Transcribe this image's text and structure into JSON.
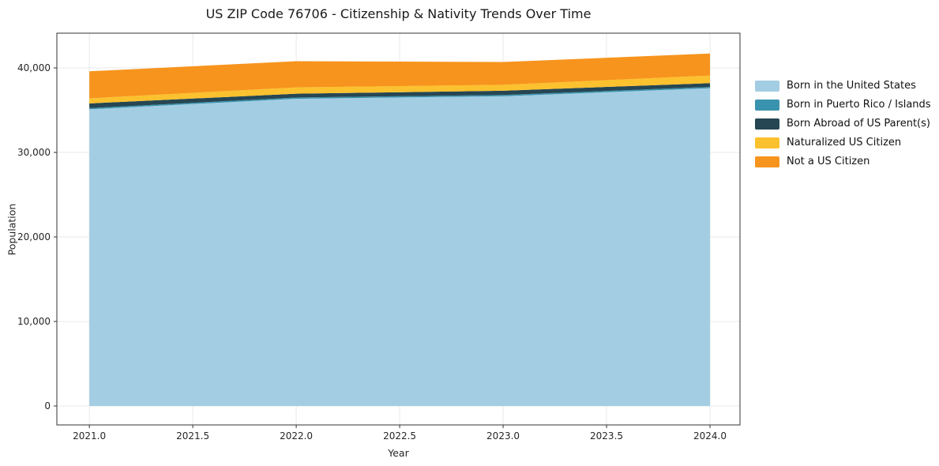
{
  "chart_data": {
    "type": "area",
    "title": "US ZIP Code 76706 - Citizenship & Nativity Trends Over Time",
    "xlabel": "Year",
    "ylabel": "Population",
    "x": [
      2021,
      2022,
      2023,
      2024
    ],
    "series": [
      {
        "name": "Born in the United States",
        "color": "#a3cde3",
        "values": [
          35100,
          36350,
          36650,
          37600
        ]
      },
      {
        "name": "Born in Puerto Rico / Islands",
        "color": "#3a93ae",
        "values": [
          150,
          150,
          150,
          150
        ]
      },
      {
        "name": "Born Abroad of US Parent(s)",
        "color": "#264653",
        "values": [
          550,
          450,
          500,
          450
        ]
      },
      {
        "name": "Naturalized US Citizen",
        "color": "#fcc12e",
        "values": [
          600,
          750,
          700,
          900
        ]
      },
      {
        "name": "Not a US Citizen",
        "color": "#f7941d",
        "values": [
          3200,
          3100,
          2700,
          2600
        ]
      }
    ],
    "x_ticks": [
      {
        "v": 2021.0,
        "label": "2021.0"
      },
      {
        "v": 2021.5,
        "label": "2021.5"
      },
      {
        "v": 2022.0,
        "label": "2022.0"
      },
      {
        "v": 2022.5,
        "label": "2022.5"
      },
      {
        "v": 2023.0,
        "label": "2023.0"
      },
      {
        "v": 2023.5,
        "label": "2023.5"
      },
      {
        "v": 2024.0,
        "label": "2024.0"
      }
    ],
    "y_ticks": [
      {
        "v": 0,
        "label": "0"
      },
      {
        "v": 10000,
        "label": "10,000"
      },
      {
        "v": 20000,
        "label": "20,000"
      },
      {
        "v": 30000,
        "label": "30,000"
      },
      {
        "v": 40000,
        "label": "40,000"
      }
    ],
    "xlim": [
      2020.843,
      2024.145
    ],
    "ylim": [
      -2243,
      44112
    ],
    "grid": true,
    "legend_position": "right",
    "colors": {
      "grid": "#e9e9e9",
      "spine": "#333333",
      "tick_text": "#262626"
    }
  }
}
